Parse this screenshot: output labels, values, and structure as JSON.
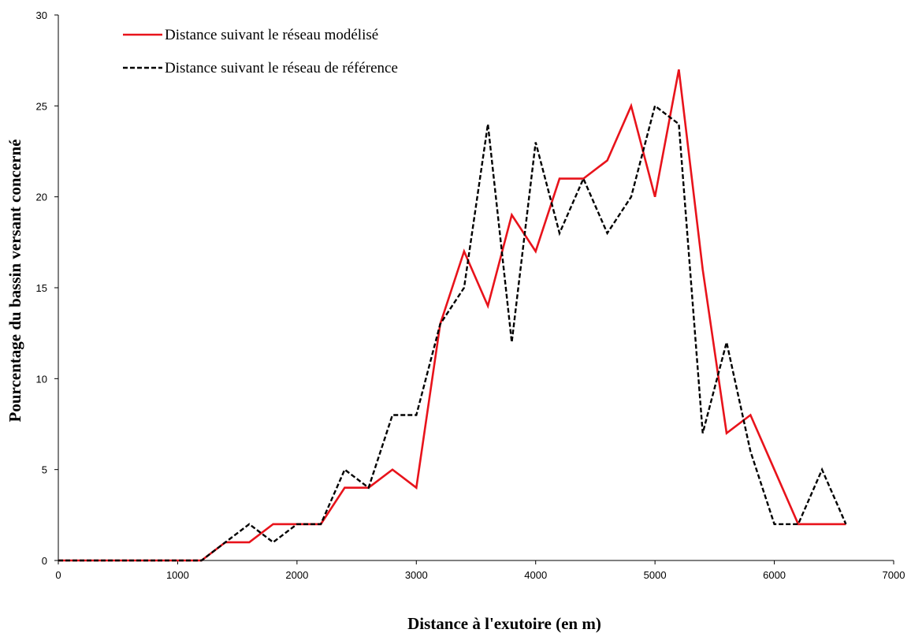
{
  "chart_data": {
    "type": "line",
    "title": "",
    "xlabel": "Distance à l'exutoire (en m)",
    "ylabel": "Pourcentage du bassin versant concerné",
    "xlim": [
      0,
      7000
    ],
    "ylim": [
      0,
      30
    ],
    "xticks": [
      0,
      1000,
      2000,
      3000,
      4000,
      5000,
      6000,
      7000
    ],
    "yticks": [
      0,
      5,
      10,
      15,
      20,
      25,
      30
    ],
    "x_tick_labels": [
      "0",
      "1000",
      "2000",
      "3000",
      "4000",
      "5000",
      "6000",
      "7000"
    ],
    "y_tick_labels": [
      "0",
      "5",
      "10",
      "15",
      "20",
      "25",
      "30"
    ],
    "grid": false,
    "legend_position": "top-left",
    "x": [
      0,
      200,
      400,
      600,
      800,
      1000,
      1200,
      1400,
      1600,
      1800,
      2000,
      2200,
      2400,
      2600,
      2800,
      3000,
      3200,
      3400,
      3600,
      3800,
      4000,
      4200,
      4400,
      4600,
      4800,
      5000,
      5200,
      5400,
      5600,
      5800,
      6000,
      6200,
      6400,
      6600
    ],
    "series": [
      {
        "name": "Distance suivant le réseau modélisé",
        "color": "#e8131b",
        "style": "solid",
        "values": [
          0,
          0,
          0,
          0,
          0,
          0,
          0,
          1,
          1,
          2,
          2,
          2,
          4,
          4,
          5,
          4,
          13,
          17,
          14,
          19,
          17,
          21,
          21,
          22,
          25,
          20,
          27,
          16,
          7,
          8,
          5,
          2,
          2,
          2
        ]
      },
      {
        "name": "Distance suivant le réseau de référence",
        "color": "#000000",
        "style": "dashed",
        "values": [
          0,
          0,
          0,
          0,
          0,
          0,
          0,
          1,
          2,
          1,
          2,
          2,
          5,
          4,
          8,
          8,
          13,
          15,
          24,
          12,
          23,
          18,
          21,
          18,
          20,
          25,
          24,
          7,
          12,
          6,
          2,
          2,
          5,
          2
        ]
      }
    ]
  }
}
